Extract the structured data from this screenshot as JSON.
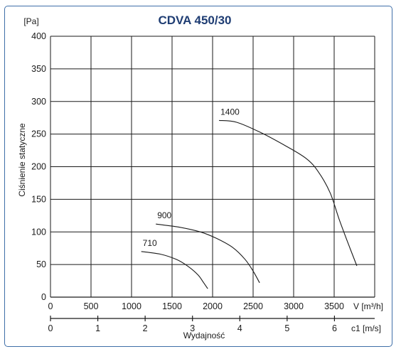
{
  "chart_data": {
    "type": "line",
    "title": "CDVA 450/30",
    "ylabel": "Ciśnienie statyczne",
    "yunit": "[Pa]",
    "xlabel": "Wydajność",
    "x_axis_label": "V [m³/h]",
    "x2_axis_label": "c1 [m/s]",
    "xlim": [
      0,
      4000
    ],
    "ylim": [
      0,
      400
    ],
    "x2lim": [
      0,
      6.85
    ],
    "xticks": [
      "0",
      "500",
      "1000",
      "1500",
      "2000",
      "2500",
      "3000",
      "3500"
    ],
    "xticks_values": [
      0,
      500,
      1000,
      1500,
      2000,
      2500,
      3000,
      3500
    ],
    "yticks": [
      "0",
      "50",
      "100",
      "150",
      "200",
      "250",
      "300",
      "350",
      "400"
    ],
    "yticks_values": [
      0,
      50,
      100,
      150,
      200,
      250,
      300,
      350,
      400
    ],
    "x2ticks": [
      "0",
      "1",
      "2",
      "3",
      "4",
      "5",
      "6"
    ],
    "x2ticks_values": [
      0,
      1,
      2,
      3,
      4,
      5,
      6
    ],
    "grid": true,
    "series": [
      {
        "name": "1400",
        "points": [
          [
            2080,
            271
          ],
          [
            2300,
            268
          ],
          [
            2600,
            252
          ],
          [
            2900,
            232
          ],
          [
            3150,
            213
          ],
          [
            3300,
            193
          ],
          [
            3450,
            160
          ],
          [
            3560,
            120
          ],
          [
            3680,
            80
          ],
          [
            3780,
            48
          ]
        ]
      },
      {
        "name": "900",
        "points": [
          [
            1300,
            112
          ],
          [
            1600,
            107
          ],
          [
            1850,
            100
          ],
          [
            2050,
            90
          ],
          [
            2250,
            76
          ],
          [
            2400,
            58
          ],
          [
            2500,
            40
          ],
          [
            2580,
            22
          ]
        ]
      },
      {
        "name": "710",
        "points": [
          [
            1120,
            70
          ],
          [
            1350,
            66
          ],
          [
            1550,
            58
          ],
          [
            1700,
            47
          ],
          [
            1820,
            34
          ],
          [
            1890,
            22
          ],
          [
            1940,
            13
          ]
        ]
      }
    ]
  }
}
